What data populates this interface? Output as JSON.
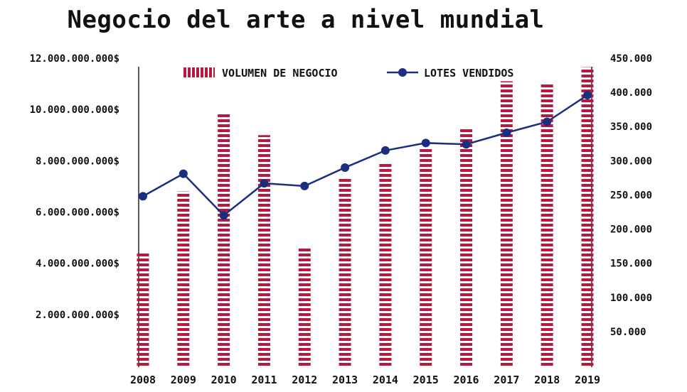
{
  "chart_data": {
    "type": "bar",
    "title": "Negocio del arte a nivel mundial",
    "categories": [
      "2008",
      "2009",
      "2010",
      "2011",
      "2012",
      "2013",
      "2014",
      "2015",
      "2016",
      "2017",
      "2018",
      "2019"
    ],
    "series": [
      {
        "name": "VOLUMEN DE NEGOCIO",
        "type": "bar",
        "axis": "left",
        "color": "#b5193f",
        "values": [
          4450000000,
          6800000000,
          9850000000,
          9000000000,
          4650000000,
          7300000000,
          7900000000,
          8500000000,
          9250000000,
          11100000000,
          11000000000,
          11650000000
        ]
      },
      {
        "name": "LOTES VENDIDOS",
        "type": "line",
        "axis": "right",
        "color": "#1b2f80",
        "values": [
          248000,
          281000,
          220000,
          267000,
          263000,
          290000,
          315000,
          326000,
          324000,
          341000,
          357000,
          396000
        ]
      }
    ],
    "y_left": {
      "range": [
        0,
        12000000000
      ],
      "ticks": [
        2000000000,
        4000000000,
        6000000000,
        8000000000,
        10000000000,
        12000000000
      ],
      "tick_labels": [
        "2.000.000.000$",
        "4.000.000.000$",
        "6.000.000.000$",
        "8.000.000.000$",
        "10.000.000.000$",
        "12.000.000.000$"
      ]
    },
    "y_right": {
      "range": [
        0,
        450000
      ],
      "ticks": [
        50000,
        100000,
        150000,
        200000,
        250000,
        300000,
        350000,
        400000,
        450000
      ],
      "tick_labels": [
        "50.000",
        "100.000",
        "150.000",
        "200.000",
        "250.000",
        "300.000",
        "350.000",
        "400.000",
        "450.000"
      ]
    },
    "grid": false,
    "legend_position": "top"
  }
}
